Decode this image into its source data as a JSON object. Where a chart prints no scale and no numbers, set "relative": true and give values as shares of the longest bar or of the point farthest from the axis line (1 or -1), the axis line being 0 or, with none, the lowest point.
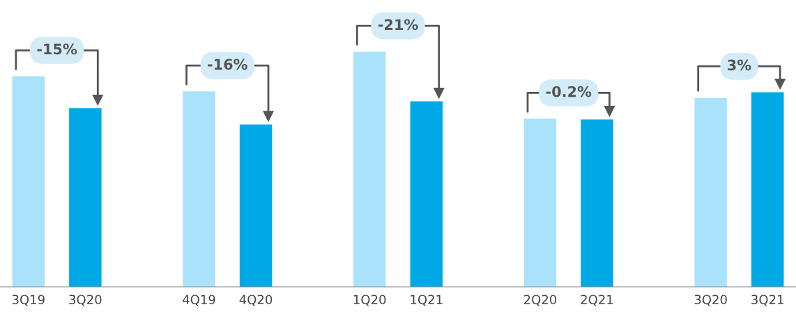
{
  "chart_data": {
    "type": "bar",
    "relative": true,
    "categories": [
      "3Q19",
      "3Q20",
      "4Q19",
      "4Q20",
      "1Q20",
      "1Q21",
      "2Q20",
      "2Q21",
      "3Q20",
      "3Q21"
    ],
    "values": [
      0.896,
      0.76,
      0.831,
      0.691,
      1,
      0.789,
      0.715,
      0.712,
      0.804,
      0.828
    ],
    "colors": [
      "#abe2fb",
      "#00a9e6",
      "#abe2fb",
      "#00a9e6",
      "#abe2fb",
      "#00a9e6",
      "#abe2fb",
      "#00a9e6",
      "#abe2fb",
      "#00a9e6"
    ],
    "annotations": [
      "-15%",
      "-16%",
      "-21%",
      "-0.2%",
      "3%"
    ],
    "grid": false,
    "legend": false
  }
}
